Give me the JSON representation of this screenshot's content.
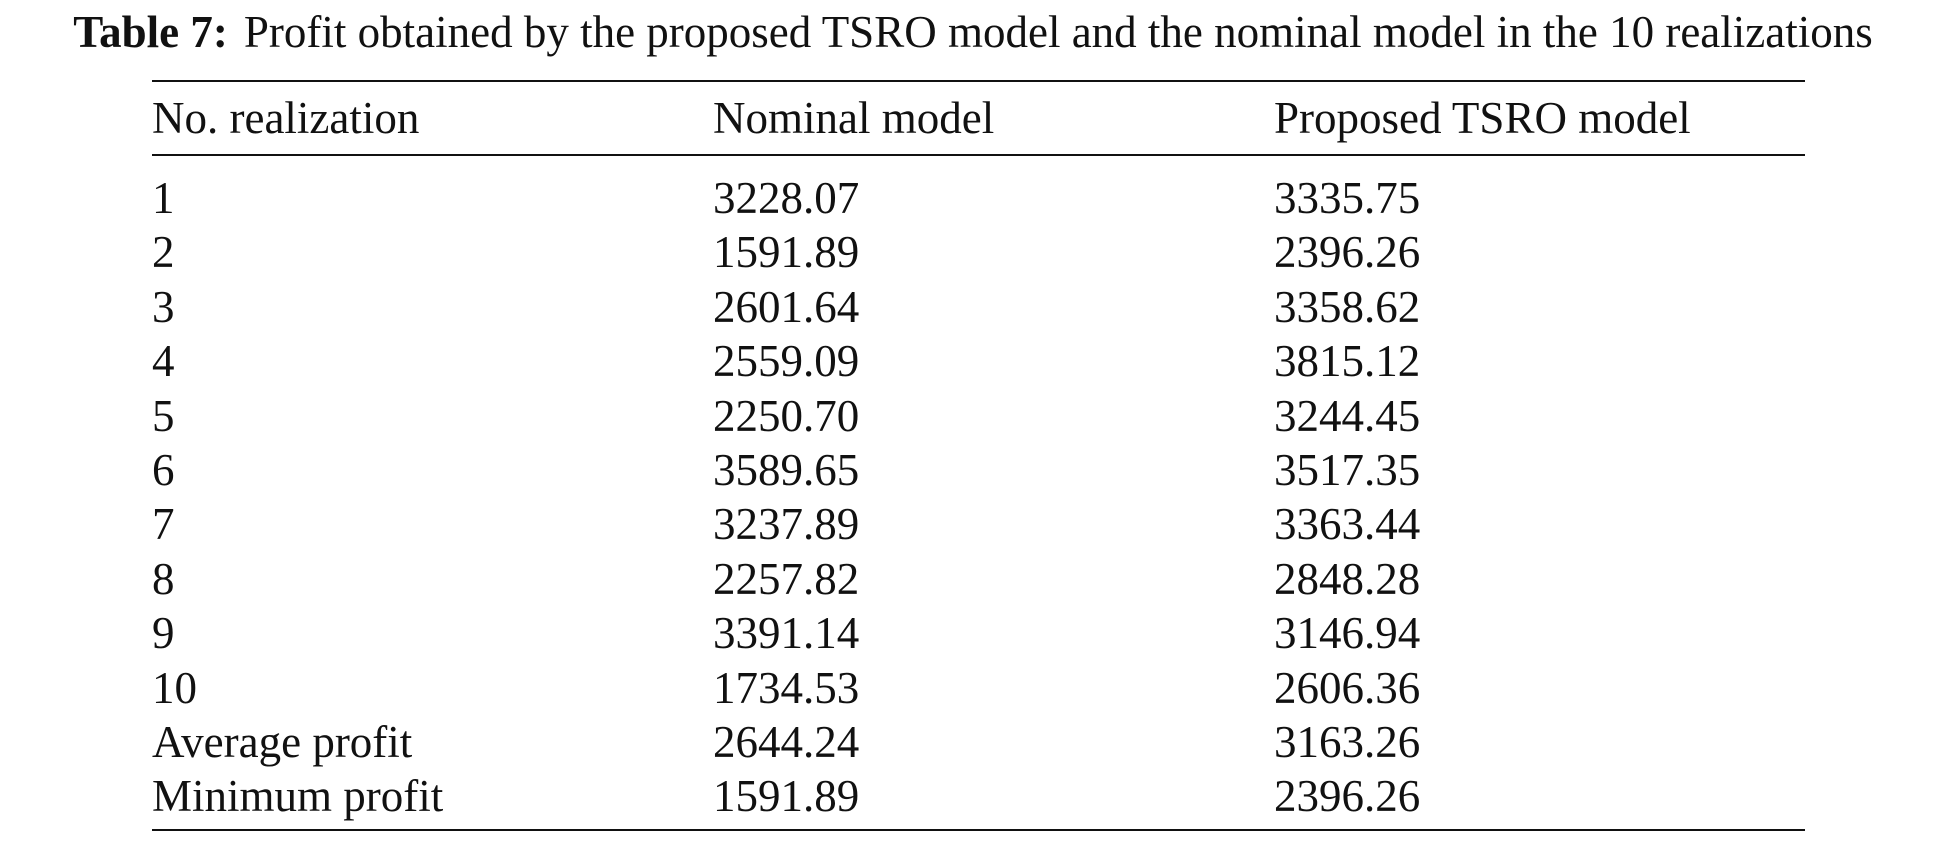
{
  "caption": {
    "label": "Table 7:",
    "text": "Profit obtained by the proposed TSRO model and the nominal model in the 10 realizations"
  },
  "table": {
    "headers": [
      "No. realization",
      "Nominal model",
      "Proposed TSRO model"
    ],
    "rows": [
      [
        "1",
        "3228.07",
        "3335.75"
      ],
      [
        "2",
        "1591.89",
        "2396.26"
      ],
      [
        "3",
        "2601.64",
        "3358.62"
      ],
      [
        "4",
        "2559.09",
        "3815.12"
      ],
      [
        "5",
        "2250.70",
        "3244.45"
      ],
      [
        "6",
        "3589.65",
        "3517.35"
      ],
      [
        "7",
        "3237.89",
        "3363.44"
      ],
      [
        "8",
        "2257.82",
        "2848.28"
      ],
      [
        "9",
        "3391.14",
        "3146.94"
      ],
      [
        "10",
        "1734.53",
        "2606.36"
      ],
      [
        "Average profit",
        "2644.24",
        "3163.26"
      ],
      [
        "Minimum profit",
        "1591.89",
        "2396.26"
      ]
    ]
  }
}
